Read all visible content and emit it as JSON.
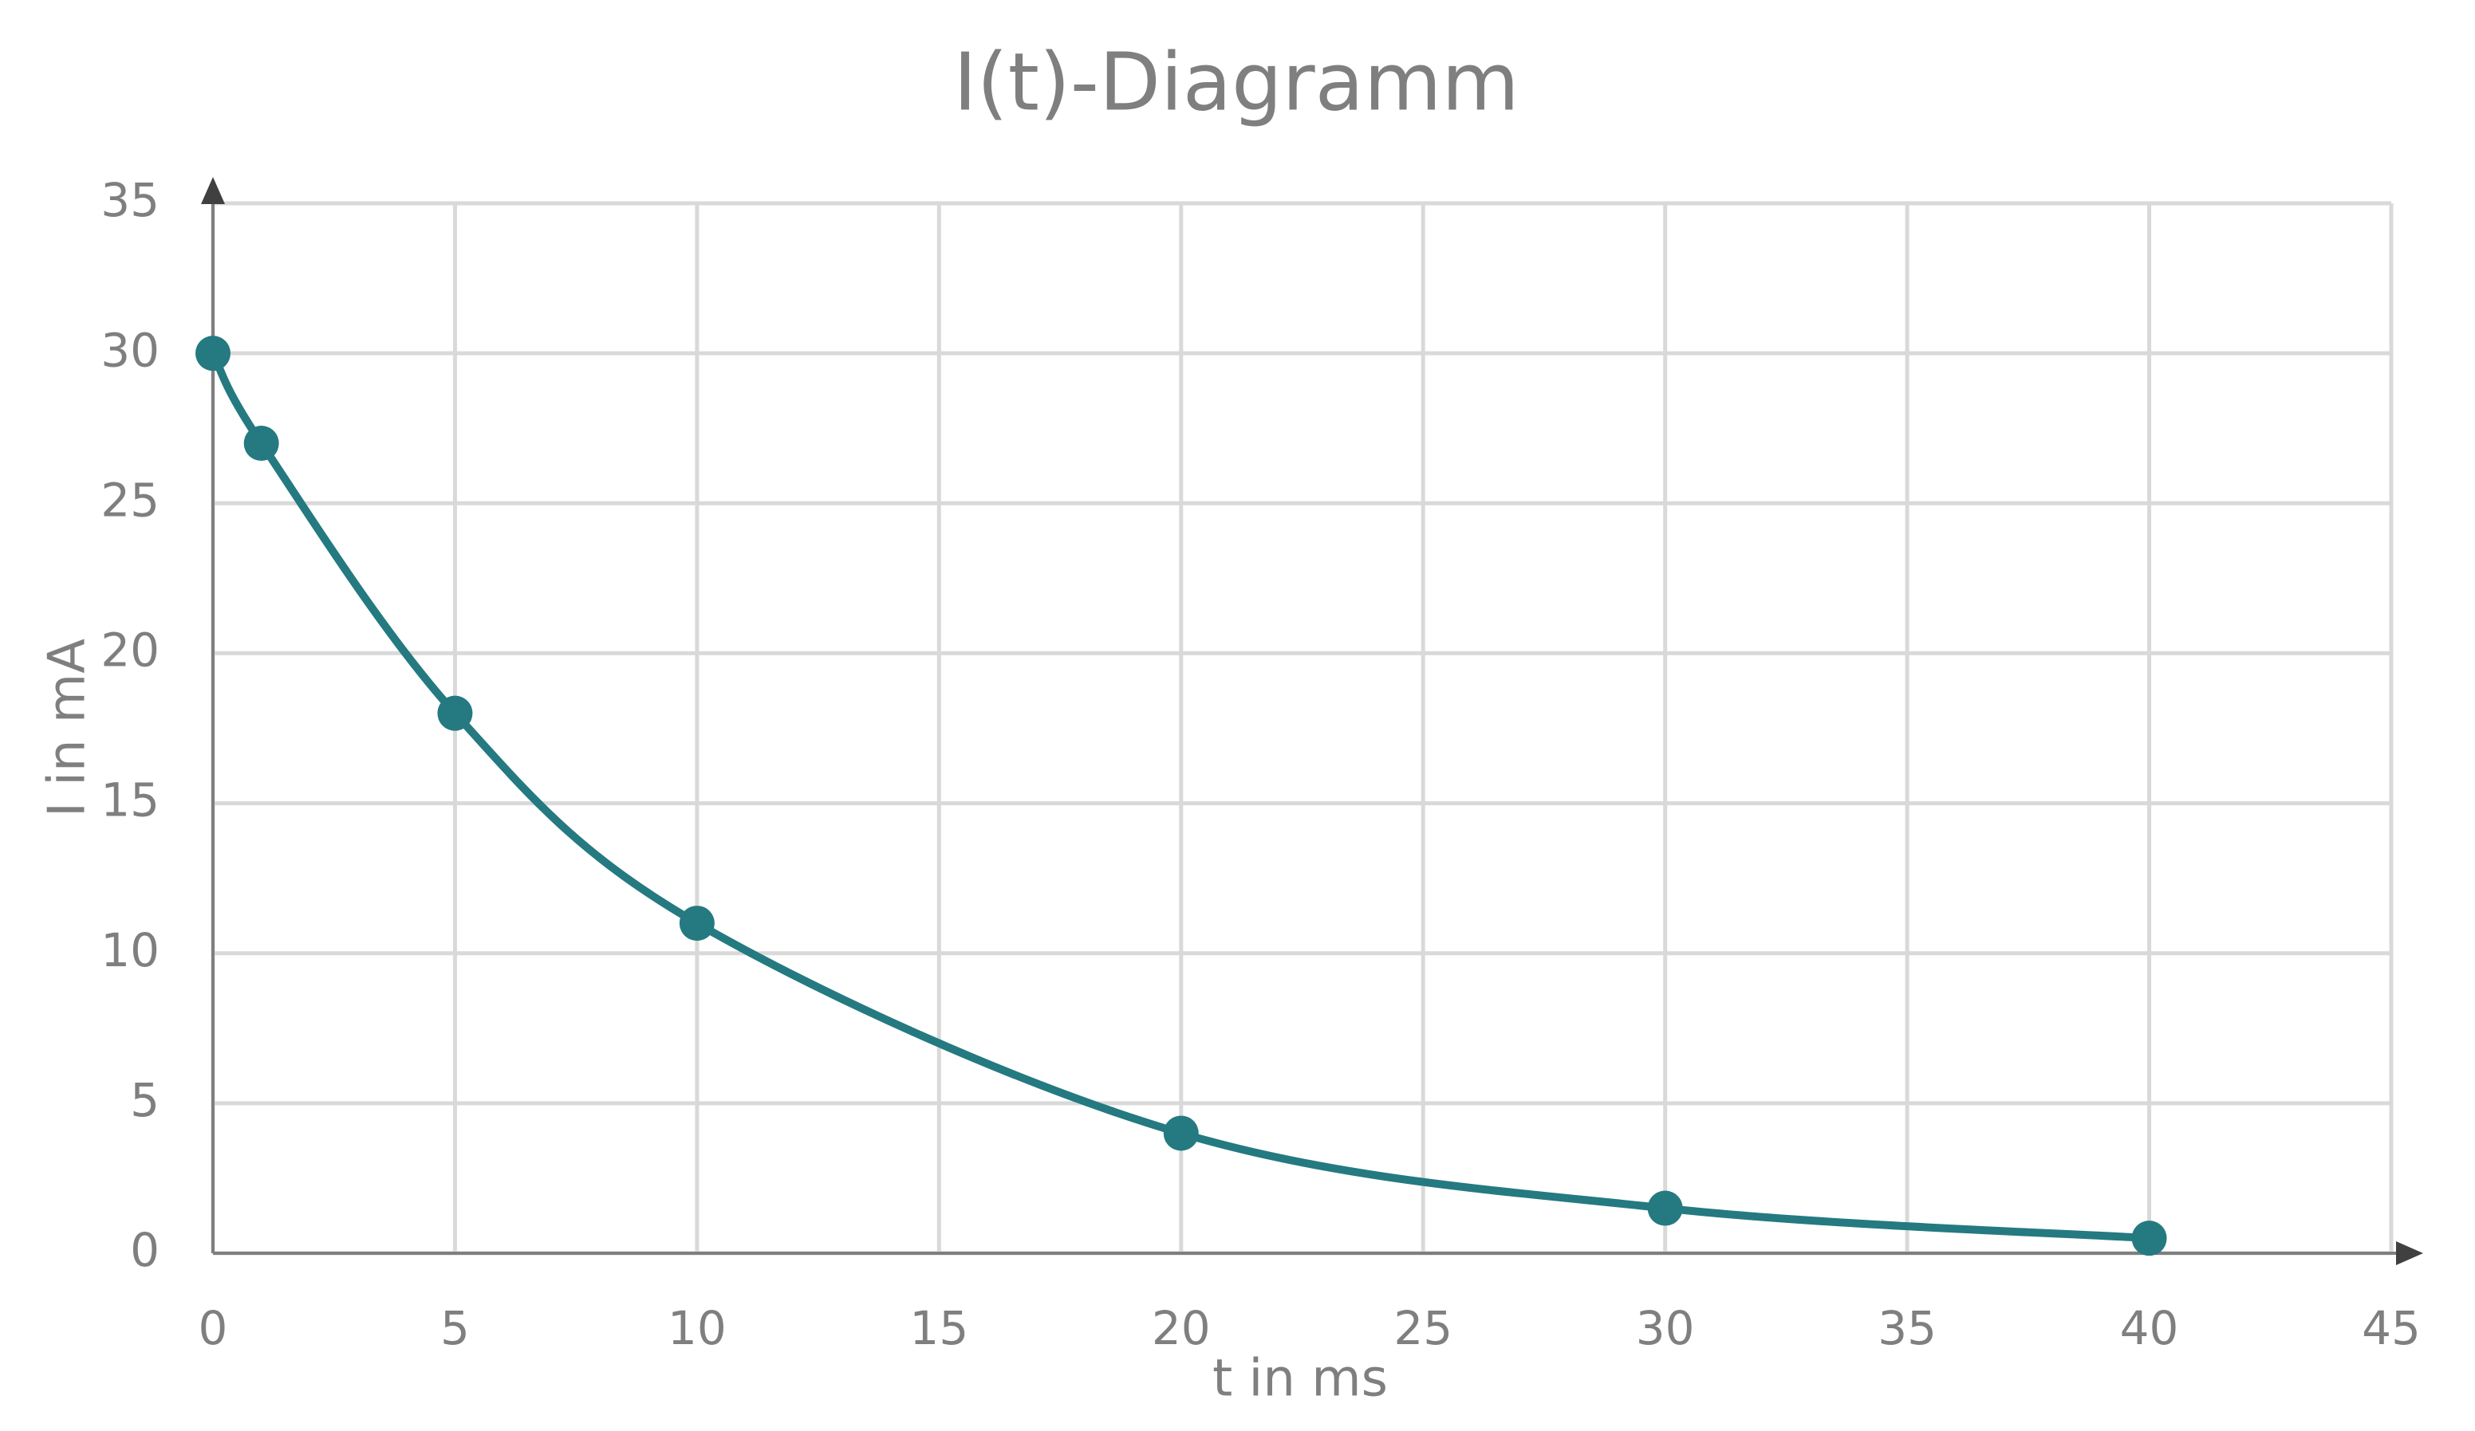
{
  "chart_data": {
    "type": "scatter",
    "title": "I(t)-Diagramm",
    "x_label": "t in ms",
    "y_label": "I in mA",
    "series": [
      {
        "color": "#247a80",
        "x": [
          0,
          1,
          5,
          10,
          20,
          30,
          40
        ],
        "values": [
          30,
          27,
          18,
          11,
          4,
          1.5,
          0.5
        ]
      }
    ],
    "smooth": true,
    "xlim": [
      0,
      45
    ],
    "xticks": [
      0,
      5,
      10,
      15,
      20,
      25,
      30,
      35,
      40,
      45
    ],
    "ylim": [
      0,
      35
    ],
    "yticks": [
      0,
      5,
      10,
      15,
      20,
      25,
      30,
      35
    ],
    "grid": true
  }
}
